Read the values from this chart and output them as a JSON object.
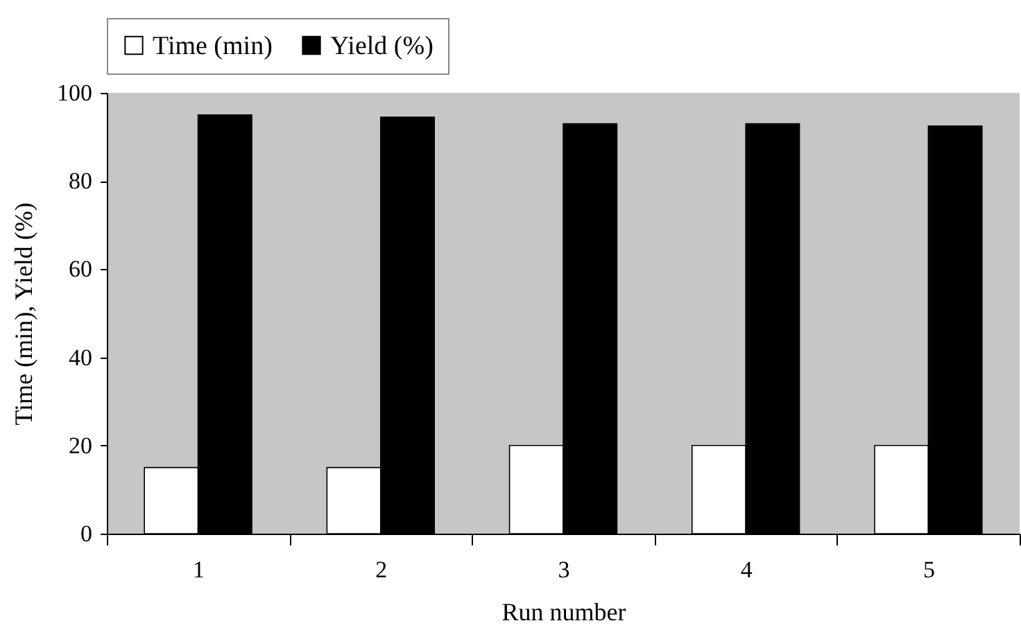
{
  "chart_data": {
    "type": "bar",
    "xlabel": "Run number",
    "ylabel": "Time (min), Yield (%)",
    "categories": [
      "1",
      "2",
      "3",
      "4",
      "5"
    ],
    "series": [
      {
        "name": "Time (min)",
        "color": "#ffffff",
        "values": [
          15,
          15,
          20,
          20,
          20
        ]
      },
      {
        "name": "Yield (%)",
        "color": "#000000",
        "values": [
          95,
          94.5,
          93,
          93,
          92.5
        ]
      }
    ],
    "ylim": [
      0,
      100
    ],
    "yticks": [
      0,
      20,
      40,
      60,
      80,
      100
    ],
    "grid": false,
    "legend": "top"
  }
}
